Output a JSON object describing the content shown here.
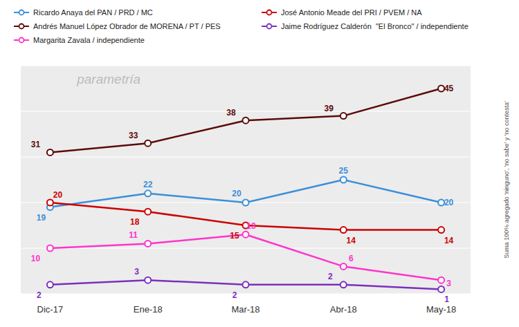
{
  "chart_data": {
    "type": "line",
    "categories": [
      "Dic-17",
      "Ene-18",
      "Mar-18",
      "Abr-18",
      "May-18"
    ],
    "series": [
      {
        "name": "Ricardo Anaya del PAN / PRD / MC",
        "color": "#3A8FD9",
        "values": [
          19,
          22,
          20,
          25,
          20
        ]
      },
      {
        "name": "José Antonio Meade del PRI / PVEM / NA",
        "color": "#CC0000",
        "values": [
          20,
          18,
          15,
          14,
          14
        ]
      },
      {
        "name": "Andrés Manuel López Obrador de MORENA / PT / PES",
        "color": "#5C0A0A",
        "values": [
          31,
          33,
          38,
          39,
          45
        ]
      },
      {
        "name": "Jaime Rodríguez Calderón  \"El Bronco\" / independiente",
        "color": "#7B2FBE",
        "values": [
          2,
          3,
          2,
          2,
          1
        ]
      },
      {
        "name": "Margarita Zavala / independiente",
        "color": "#FF33CC",
        "values": [
          10,
          11,
          13,
          6,
          3
        ]
      }
    ],
    "ylim": [
      0,
      50
    ],
    "yticks": [
      0,
      10,
      20,
      30,
      40,
      50
    ],
    "grid": true,
    "tick_labels": "x",
    "data_labels": true,
    "marker": "circle",
    "legend": "top-left",
    "annotations": [
      "Suma 100% agregado 'ninguno', 'no sabe' y 'no contesta'",
      "parametría"
    ]
  }
}
